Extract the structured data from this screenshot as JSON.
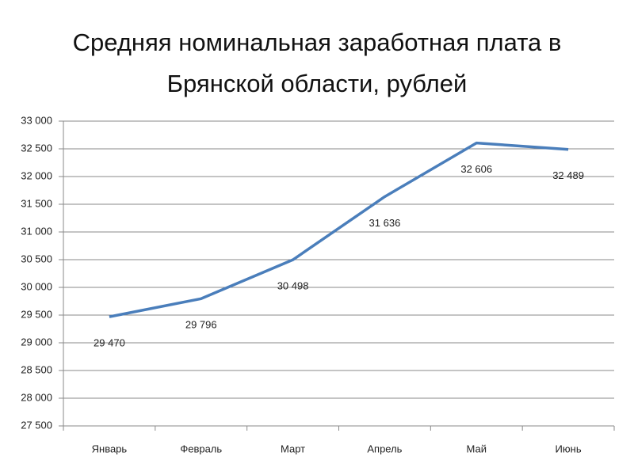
{
  "chart_data": {
    "type": "line",
    "title": "Средняя номинальная заработная плата в Брянской области, рублей",
    "categories": [
      "Январь",
      "Февраль",
      "Март",
      "Апрель",
      "Май",
      "Июнь"
    ],
    "series": [
      {
        "name": "Средняя номинальная заработная плата",
        "color": "#4a7ebb",
        "values": [
          29470,
          29796,
          30498,
          31636,
          32606,
          32489
        ],
        "value_labels": [
          "29 470",
          "29 796",
          "30 498",
          "31 636",
          "32 606",
          "32 489"
        ]
      }
    ],
    "ylim": [
      27500,
      33000
    ],
    "yticks": [
      {
        "value": 27500,
        "label": "27 500"
      },
      {
        "value": 28000,
        "label": "28 000"
      },
      {
        "value": 28500,
        "label": "28 500"
      },
      {
        "value": 29000,
        "label": "29 000"
      },
      {
        "value": 29500,
        "label": "29 500"
      },
      {
        "value": 30000,
        "label": "30 000"
      },
      {
        "value": 30500,
        "label": "30 500"
      },
      {
        "value": 31000,
        "label": "31 000"
      },
      {
        "value": 31500,
        "label": "31 500"
      },
      {
        "value": 32000,
        "label": "32 000"
      },
      {
        "value": 32500,
        "label": "32 500"
      },
      {
        "value": 33000,
        "label": "33 000"
      }
    ],
    "grid": true
  }
}
